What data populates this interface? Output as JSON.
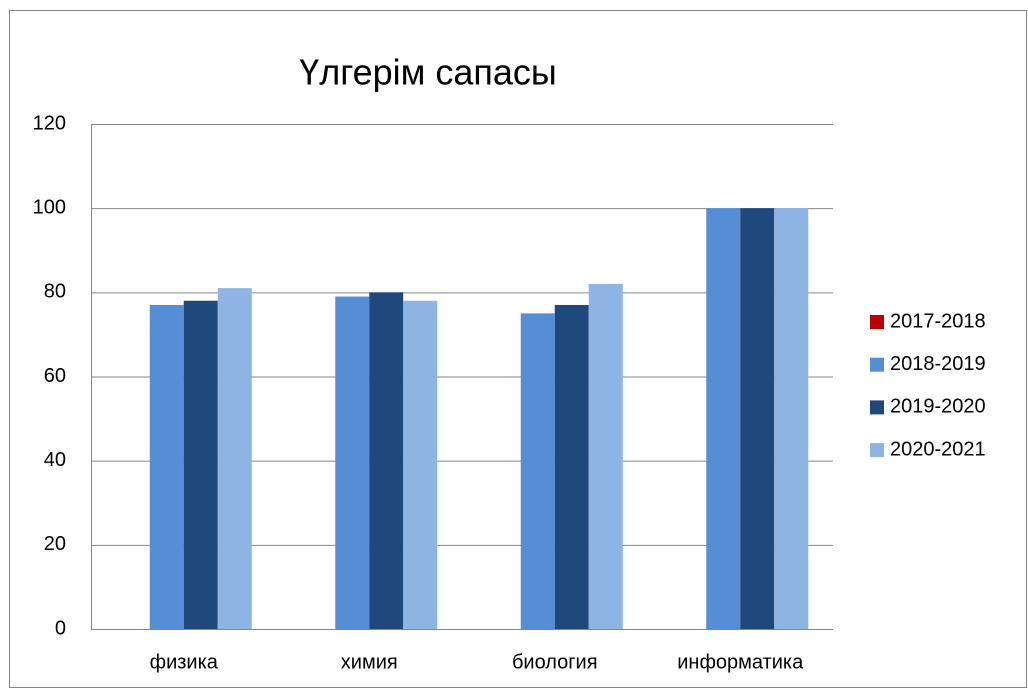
{
  "chart_data": {
    "type": "bar",
    "title": "Үлгерім сапасы",
    "categories": [
      "физика",
      "химия",
      "биология",
      "информатика"
    ],
    "series": [
      {
        "name": "2017-2018",
        "color": "#c00000",
        "values": [
          null,
          null,
          null,
          null
        ]
      },
      {
        "name": "2018-2019",
        "color": "#558ed5",
        "values": [
          77,
          79,
          75,
          100
        ]
      },
      {
        "name": "2019-2020",
        "color": "#1f497d",
        "values": [
          78,
          80,
          77,
          100
        ]
      },
      {
        "name": "2020-2021",
        "color": "#8eb4e3",
        "values": [
          81,
          78,
          82,
          100
        ]
      }
    ],
    "ylim": [
      0,
      120
    ],
    "yticks": [
      0,
      20,
      40,
      60,
      80,
      100,
      120
    ],
    "grid": true,
    "legend": "right"
  }
}
